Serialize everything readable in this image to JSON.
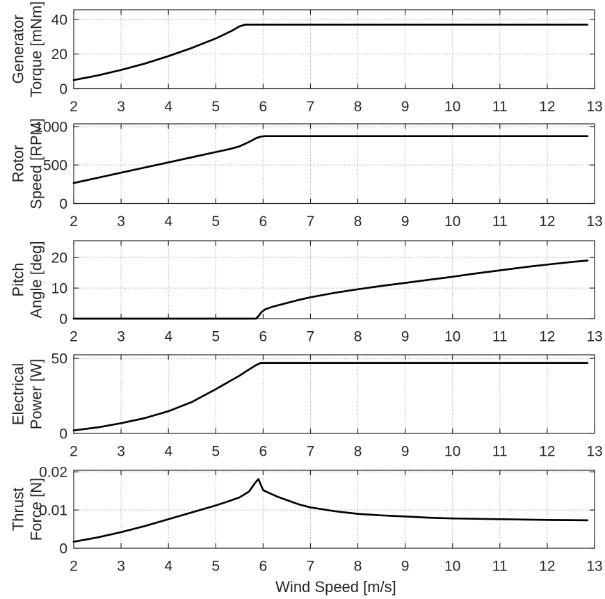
{
  "figure": {
    "xlabel": "Wind Speed [m/s]",
    "background": "#ffffff",
    "axis_color": "#262626",
    "grid_color": "#a9a9a9",
    "line_color": "#000000"
  },
  "chart_data": [
    {
      "type": "line",
      "ylabel_lines": [
        "Generator",
        "Torque [mNm]"
      ],
      "xlim": [
        2,
        13
      ],
      "ylim": [
        0,
        45.6
      ],
      "xticks": [
        2,
        3,
        4,
        5,
        6,
        7,
        8,
        9,
        10,
        11,
        12,
        13
      ],
      "yticks": [
        {
          "value": 0,
          "label": "0"
        },
        {
          "value": 20,
          "label": "20"
        },
        {
          "value": 40,
          "label": "40"
        }
      ],
      "grid": true,
      "series": [
        {
          "name": "generator-torque",
          "x": [
            2,
            2.5,
            3,
            3.5,
            4,
            4.5,
            5,
            5.2,
            5.35,
            5.5,
            5.62,
            6,
            7,
            8,
            9,
            10,
            11,
            12,
            12.85
          ],
          "y": [
            5,
            7.6,
            10.8,
            14.5,
            18.8,
            23.6,
            29,
            31.6,
            33.6,
            36,
            37,
            37,
            37,
            37,
            37,
            37,
            37,
            37,
            37
          ]
        }
      ]
    },
    {
      "type": "line",
      "ylabel_lines": [
        "Rotor",
        "Speed [RPM]"
      ],
      "xlim": [
        2,
        13
      ],
      "ylim": [
        0,
        1035
      ],
      "xticks": [
        2,
        3,
        4,
        5,
        6,
        7,
        8,
        9,
        10,
        11,
        12,
        13
      ],
      "yticks": [
        {
          "value": 0,
          "label": "0"
        },
        {
          "value": 500,
          "label": "500"
        },
        {
          "value": 1000,
          "label": "1000"
        }
      ],
      "grid": true,
      "series": [
        {
          "name": "rotor-speed",
          "x": [
            2,
            2.5,
            3,
            3.5,
            4,
            4.5,
            5,
            5.3,
            5.5,
            5.7,
            5.85,
            5.95,
            6.05,
            7,
            8,
            9,
            10,
            11,
            12,
            12.85
          ],
          "y": [
            266,
            333,
            400,
            467,
            534,
            601,
            668,
            708,
            742,
            798,
            848,
            870,
            875,
            875,
            875,
            875,
            875,
            875,
            875,
            875
          ]
        }
      ]
    },
    {
      "type": "line",
      "ylabel_lines": [
        "Pitch",
        "Angle [deg]"
      ],
      "xlim": [
        2,
        13
      ],
      "ylim": [
        0,
        25.5
      ],
      "xticks": [
        2,
        3,
        4,
        5,
        6,
        7,
        8,
        9,
        10,
        11,
        12,
        13
      ],
      "yticks": [
        {
          "value": 0,
          "label": "0"
        },
        {
          "value": 10,
          "label": "10"
        },
        {
          "value": 20,
          "label": "20"
        }
      ],
      "grid": true,
      "series": [
        {
          "name": "pitch-angle",
          "x": [
            2,
            3,
            4,
            5,
            5.5,
            5.85,
            5.9,
            5.97,
            6.05,
            6.2,
            6.5,
            6.75,
            7,
            7.5,
            8,
            8.5,
            9,
            9.5,
            10,
            10.5,
            11,
            11.5,
            12,
            12.5,
            12.85
          ],
          "y": [
            0,
            0,
            0,
            0,
            0,
            0,
            0.8,
            2.2,
            3.1,
            3.9,
            5.1,
            6.1,
            7,
            8.4,
            9.6,
            10.7,
            11.7,
            12.7,
            13.7,
            14.8,
            15.8,
            16.8,
            17.7,
            18.5,
            19
          ]
        }
      ]
    },
    {
      "type": "line",
      "ylabel_lines": [
        "Electrical",
        "Power [W]"
      ],
      "xlim": [
        2,
        13
      ],
      "ylim": [
        0,
        52.4
      ],
      "xticks": [
        2,
        3,
        4,
        5,
        6,
        7,
        8,
        9,
        10,
        11,
        12,
        13
      ],
      "yticks": [
        {
          "value": 0,
          "label": "0"
        },
        {
          "value": 50,
          "label": "50"
        }
      ],
      "grid": true,
      "series": [
        {
          "name": "electrical-power",
          "x": [
            2,
            2.5,
            3,
            3.5,
            4,
            4.5,
            5,
            5.25,
            5.5,
            5.7,
            5.85,
            5.95,
            7,
            8,
            9,
            10,
            11,
            12,
            12.85
          ],
          "y": [
            2,
            4,
            6.8,
            10.2,
            14.8,
            21,
            29.5,
            34,
            38.5,
            42.5,
            45.5,
            47,
            47,
            47,
            47,
            47,
            47,
            47,
            47
          ]
        }
      ]
    },
    {
      "type": "line",
      "ylabel_lines": [
        "Thrust",
        "Force [N]"
      ],
      "xlim": [
        2,
        13
      ],
      "ylim": [
        0,
        0.0204
      ],
      "xticks": [
        2,
        3,
        4,
        5,
        6,
        7,
        8,
        9,
        10,
        11,
        12,
        13
      ],
      "yticks": [
        {
          "value": 0,
          "label": "0"
        },
        {
          "value": 0.01,
          "label": "0.01"
        },
        {
          "value": 0.02,
          "label": "0.02"
        }
      ],
      "grid": true,
      "series": [
        {
          "name": "thrust-force",
          "x": [
            2,
            2.5,
            3,
            3.5,
            4,
            4.5,
            5,
            5.25,
            5.5,
            5.7,
            5.85,
            5.9,
            6,
            6.1,
            6.3,
            6.5,
            6.75,
            7,
            7.5,
            8,
            8.5,
            9,
            9.5,
            10,
            10.5,
            11,
            11.5,
            12,
            12.5,
            12.85
          ],
          "y": [
            0.0017,
            0.0028,
            0.0042,
            0.0058,
            0.0076,
            0.0094,
            0.0112,
            0.0122,
            0.0133,
            0.0148,
            0.0174,
            0.0181,
            0.0152,
            0.0146,
            0.0135,
            0.0126,
            0.0115,
            0.0107,
            0.0097,
            0.009,
            0.0086,
            0.0083,
            0.008,
            0.0078,
            0.0077,
            0.0076,
            0.0075,
            0.0074,
            0.00735,
            0.0073
          ]
        }
      ]
    }
  ]
}
